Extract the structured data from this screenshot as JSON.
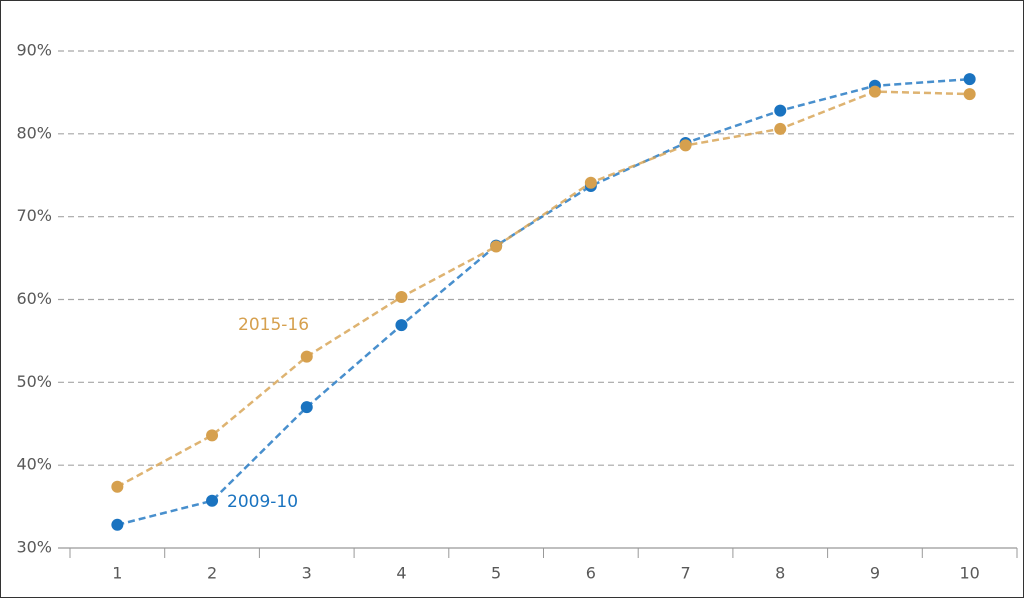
{
  "chart_data": {
    "type": "line",
    "categories": [
      "1",
      "2",
      "3",
      "4",
      "5",
      "6",
      "7",
      "8",
      "9",
      "10"
    ],
    "series": [
      {
        "name": "2009-10",
        "color": "#1a73c0",
        "values": [
          32.8,
          35.7,
          47.0,
          56.9,
          66.5,
          73.7,
          78.9,
          82.8,
          85.8,
          86.6
        ]
      },
      {
        "name": "2015-16",
        "color": "#d6a04e",
        "values": [
          37.4,
          43.6,
          53.1,
          60.3,
          66.4,
          74.1,
          78.6,
          80.6,
          85.1,
          84.8
        ]
      }
    ],
    "ylim": [
      30,
      90
    ],
    "yticks": [
      {
        "value": 30,
        "label": "30%"
      },
      {
        "value": 40,
        "label": "40%"
      },
      {
        "value": 50,
        "label": "50%"
      },
      {
        "value": 60,
        "label": "60%"
      },
      {
        "value": 70,
        "label": "70%"
      },
      {
        "value": 80,
        "label": "80%"
      },
      {
        "value": 90,
        "label": "90%"
      }
    ],
    "grid": true
  }
}
